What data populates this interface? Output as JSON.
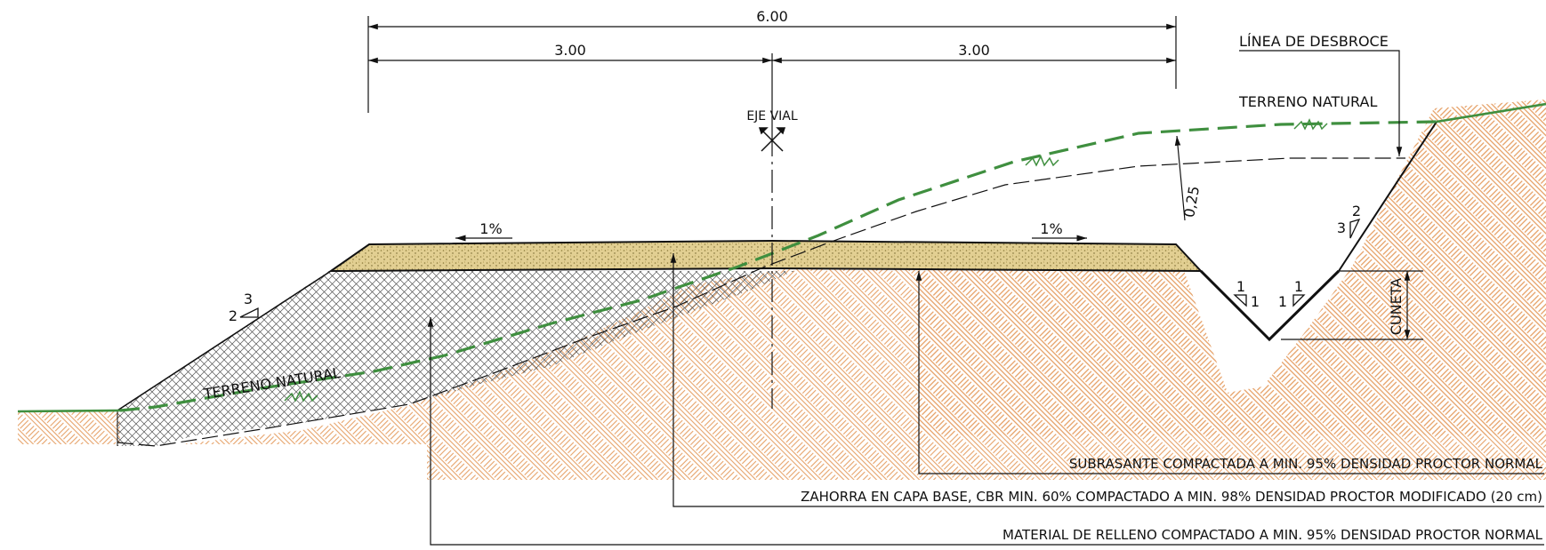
{
  "dimensions": {
    "total_width": "6.00",
    "half_left": "3.00",
    "half_right": "3.00",
    "strip_depth": "0,25"
  },
  "labels": {
    "axis": "EJE VIAL",
    "ground_right": "TERRENO NATURAL",
    "ground_left": "TERRENO NATURAL",
    "clearing_line": "LÍNEA DE DESBROCE",
    "ditch": "CUNETA"
  },
  "slopes": {
    "crown_left": "1%",
    "crown_right": "1%",
    "fill_slope": {
      "v": "3",
      "h": "2"
    },
    "cut_slope": {
      "v": "2",
      "h": "3"
    },
    "ditch_left": {
      "v": "1",
      "h": "1"
    },
    "ditch_right": {
      "v": "1",
      "h": "1"
    }
  },
  "notes": {
    "subgrade": "SUBRASANTE COMPACTADA A MIN. 95% DENSIDAD PROCTOR NORMAL",
    "base": "ZAHORRA EN CAPA BASE, CBR MIN. 60% COMPACTADO A MIN. 98% DENSIDAD PROCTOR MODIFICADO (20 cm)",
    "fill": "MATERIAL DE RELLENO COMPACTADO A MIN. 95% DENSIDAD PROCTOR NORMAL"
  },
  "colors": {
    "ground_line": "#3f8f3f",
    "soil_hatch": "#e6a36a",
    "base_fill": "#e2cf92",
    "ink": "#111111"
  }
}
